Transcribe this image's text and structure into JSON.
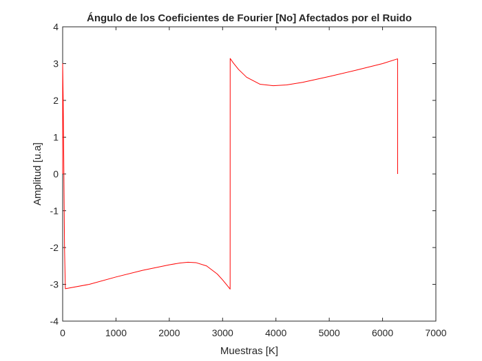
{
  "chart_data": {
    "type": "line",
    "title": "Ángulo de los Coeficientes de Fourier [No] Afectados por el Ruido",
    "xlabel": "Muestras [K]",
    "ylabel": "Amplitud [u.a]",
    "xlim": [
      0,
      7000
    ],
    "ylim": [
      -4,
      4
    ],
    "xticks": [
      0,
      1000,
      2000,
      3000,
      4000,
      5000,
      6000,
      7000
    ],
    "yticks": [
      -4,
      -3,
      -2,
      -1,
      0,
      1,
      2,
      3,
      4
    ],
    "grid": false,
    "legend": "none",
    "series": [
      {
        "color": "#ff0000",
        "x": [
          0,
          0,
          10,
          20,
          35,
          50,
          500,
          1000,
          1500,
          2000,
          2200,
          2350,
          2500,
          2700,
          2900,
          3000,
          3080,
          3141,
          3142,
          3200,
          3300,
          3450,
          3700,
          3950,
          4200,
          4500,
          5000,
          5500,
          6000,
          6282,
          6283
        ],
        "y": [
          0,
          3.0,
          2.0,
          0.5,
          -2.0,
          -3.12,
          -3.0,
          -2.8,
          -2.62,
          -2.47,
          -2.42,
          -2.4,
          -2.41,
          -2.5,
          -2.72,
          -2.88,
          -3.02,
          -3.13,
          3.14,
          3.02,
          2.84,
          2.63,
          2.44,
          2.4,
          2.42,
          2.49,
          2.65,
          2.82,
          3.0,
          3.13,
          0
        ]
      }
    ]
  }
}
